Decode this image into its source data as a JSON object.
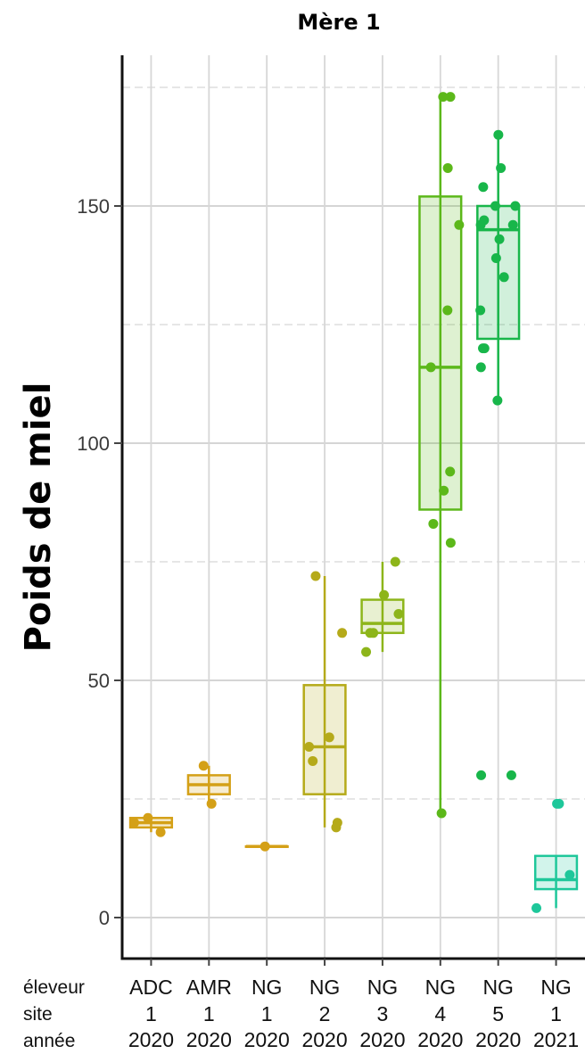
{
  "chart_data": {
    "type": "box",
    "title": "Mère 1",
    "ylabel": "Poids de miel",
    "xlabel": "",
    "ylim": [
      -8,
      181
    ],
    "yticks": [
      0,
      50,
      100,
      150
    ],
    "grid": true,
    "row_labels": [
      "éleveur",
      "site",
      "année"
    ],
    "groups": [
      {
        "eleveur": "ADC",
        "site": "1",
        "annee": "2020",
        "color": "#d4a017",
        "q1": 19,
        "median": 20,
        "q3": 21,
        "whisker_low": 18,
        "whisker_high": 21,
        "points": [
          18,
          20,
          21
        ]
      },
      {
        "eleveur": "AMR",
        "site": "1",
        "annee": "2020",
        "color": "#d4a017",
        "q1": 26,
        "median": 28,
        "q3": 30,
        "whisker_low": 24,
        "whisker_high": 32,
        "points": [
          24,
          32
        ]
      },
      {
        "eleveur": "NG",
        "site": "1",
        "annee": "2020",
        "color": "#d4a017",
        "q1": 15,
        "median": 15,
        "q3": 15,
        "whisker_low": 15,
        "whisker_high": 15,
        "points": [
          15
        ]
      },
      {
        "eleveur": "NG",
        "site": "2",
        "annee": "2020",
        "color": "#b5aa1a",
        "q1": 26,
        "median": 36,
        "q3": 49,
        "whisker_low": 19,
        "whisker_high": 72,
        "points": [
          72,
          60,
          38,
          36,
          33,
          20,
          19
        ]
      },
      {
        "eleveur": "NG",
        "site": "3",
        "annee": "2020",
        "color": "#8db51a",
        "q1": 60,
        "median": 62,
        "q3": 67,
        "whisker_low": 56,
        "whisker_high": 75,
        "points": [
          75,
          68,
          64,
          60,
          60,
          56
        ]
      },
      {
        "eleveur": "NG",
        "site": "4",
        "annee": "2020",
        "color": "#5cb81a",
        "q1": 86,
        "median": 116,
        "q3": 152,
        "whisker_low": 22,
        "whisker_high": 173,
        "points": [
          173,
          173,
          158,
          146,
          128,
          116,
          94,
          90,
          83,
          79,
          22
        ]
      },
      {
        "eleveur": "NG",
        "site": "5",
        "annee": "2020",
        "color": "#18b64a",
        "q1": 122,
        "median": 145,
        "q3": 150,
        "whisker_low": 109,
        "whisker_high": 165,
        "points": [
          165,
          158,
          154,
          150,
          150,
          147,
          146,
          146,
          143,
          139,
          135,
          128,
          120,
          120,
          116,
          109,
          30,
          30
        ]
      },
      {
        "eleveur": "NG",
        "site": "1",
        "annee": "2021",
        "color": "#1ec79a",
        "q1": 6,
        "median": 8,
        "q3": 13,
        "whisker_low": 2,
        "whisker_high": 13,
        "points": [
          24,
          24,
          9,
          2
        ]
      }
    ]
  }
}
